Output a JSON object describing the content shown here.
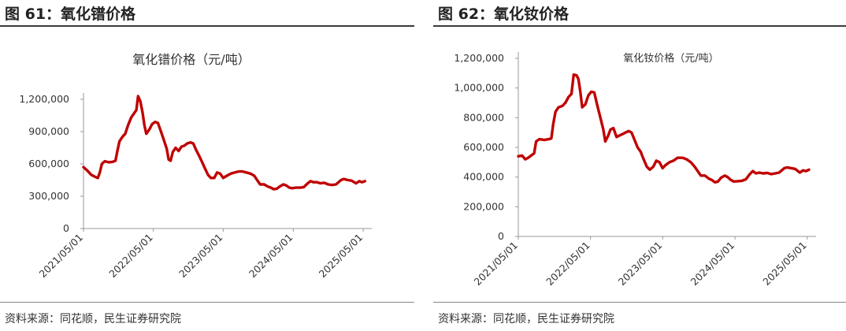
{
  "figures": [
    {
      "heading": "图 61：氧化镨价格",
      "source": "资料来源：同花顺，民生证券研究院",
      "chart_data": {
        "type": "line",
        "title": "氧化镨价格（元/吨）",
        "xlabel": "",
        "ylabel": "",
        "ylim": [
          0,
          1200000
        ],
        "yticks": [
          0,
          300000,
          600000,
          900000,
          1200000
        ],
        "ytick_labels": [
          "0",
          "300,000",
          "600,000",
          "900,000",
          "1,200,000"
        ],
        "xlim": [
          "2021/05/01",
          "2025/06/15"
        ],
        "xtick_labels": [
          "2021/05/01",
          "2022/05/01",
          "2023/05/01",
          "2024/05/01",
          "2025/05/01"
        ],
        "line_color": "#c00000",
        "grid": false,
        "legend": "none",
        "series": [
          {
            "points": [
              [
                "2021/05/01",
                570000
              ],
              [
                "2021/05/20",
                540000
              ],
              [
                "2021/06/10",
                500000
              ],
              [
                "2021/07/01",
                480000
              ],
              [
                "2021/07/15",
                470000
              ],
              [
                "2021/07/25",
                520000
              ],
              [
                "2021/08/05",
                600000
              ],
              [
                "2021/08/20",
                625000
              ],
              [
                "2021/09/10",
                615000
              ],
              [
                "2021/10/01",
                620000
              ],
              [
                "2021/10/15",
                630000
              ],
              [
                "2021/10/25",
                720000
              ],
              [
                "2021/11/05",
                810000
              ],
              [
                "2021/11/20",
                850000
              ],
              [
                "2021/12/05",
                880000
              ],
              [
                "2021/12/20",
                960000
              ],
              [
                "2022/01/05",
                1030000
              ],
              [
                "2022/01/20",
                1070000
              ],
              [
                "2022/02/01",
                1100000
              ],
              [
                "2022/02/10",
                1230000
              ],
              [
                "2022/02/22",
                1180000
              ],
              [
                "2022/03/05",
                1080000
              ],
              [
                "2022/03/15",
                960000
              ],
              [
                "2022/03/25",
                880000
              ],
              [
                "2022/04/10",
                920000
              ],
              [
                "2022/04/25",
                970000
              ],
              [
                "2022/05/10",
                990000
              ],
              [
                "2022/05/25",
                980000
              ],
              [
                "2022/06/10",
                900000
              ],
              [
                "2022/06/25",
                820000
              ],
              [
                "2022/07/10",
                740000
              ],
              [
                "2022/07/20",
                640000
              ],
              [
                "2022/07/30",
                630000
              ],
              [
                "2022/08/10",
                710000
              ],
              [
                "2022/08/25",
                750000
              ],
              [
                "2022/09/10",
                720000
              ],
              [
                "2022/09/25",
                760000
              ],
              [
                "2022/10/10",
                770000
              ],
              [
                "2022/10/25",
                790000
              ],
              [
                "2022/11/10",
                800000
              ],
              [
                "2022/11/25",
                790000
              ],
              [
                "2022/12/10",
                730000
              ],
              [
                "2022/12/25",
                680000
              ],
              [
                "2023/01/10",
                620000
              ],
              [
                "2023/01/25",
                560000
              ],
              [
                "2023/02/10",
                500000
              ],
              [
                "2023/02/25",
                470000
              ],
              [
                "2023/03/15",
                470000
              ],
              [
                "2023/03/30",
                520000
              ],
              [
                "2023/04/15",
                510000
              ],
              [
                "2023/05/01",
                470000
              ],
              [
                "2023/05/20",
                490000
              ],
              [
                "2023/06/10",
                510000
              ],
              [
                "2023/06/30",
                520000
              ],
              [
                "2023/07/20",
                530000
              ],
              [
                "2023/08/10",
                530000
              ],
              [
                "2023/08/30",
                520000
              ],
              [
                "2023/09/20",
                510000
              ],
              [
                "2023/10/10",
                490000
              ],
              [
                "2023/10/25",
                450000
              ],
              [
                "2023/11/10",
                410000
              ],
              [
                "2023/12/01",
                410000
              ],
              [
                "2023/12/20",
                390000
              ],
              [
                "2024/01/05",
                380000
              ],
              [
                "2024/01/20",
                365000
              ],
              [
                "2024/02/05",
                370000
              ],
              [
                "2024/02/20",
                390000
              ],
              [
                "2024/03/10",
                410000
              ],
              [
                "2024/03/25",
                400000
              ],
              [
                "2024/04/10",
                380000
              ],
              [
                "2024/04/25",
                375000
              ],
              [
                "2024/05/15",
                380000
              ],
              [
                "2024/06/05",
                380000
              ],
              [
                "2024/06/25",
                385000
              ],
              [
                "2024/07/15",
                420000
              ],
              [
                "2024/07/30",
                440000
              ],
              [
                "2024/08/15",
                430000
              ],
              [
                "2024/09/01",
                430000
              ],
              [
                "2024/09/20",
                420000
              ],
              [
                "2024/10/10",
                425000
              ],
              [
                "2024/10/30",
                410000
              ],
              [
                "2024/11/20",
                405000
              ],
              [
                "2024/12/10",
                410000
              ],
              [
                "2025/01/05",
                450000
              ],
              [
                "2025/01/20",
                460000
              ],
              [
                "2025/02/10",
                450000
              ],
              [
                "2025/03/01",
                445000
              ],
              [
                "2025/03/15",
                430000
              ],
              [
                "2025/03/25",
                420000
              ],
              [
                "2025/04/10",
                440000
              ],
              [
                "2025/04/25",
                430000
              ],
              [
                "2025/05/10",
                440000
              ]
            ]
          }
        ]
      }
    },
    {
      "heading": "图 62：氧化钕价格",
      "source": "资料来源：同花顺，民生证券研究院",
      "chart_data": {
        "type": "line",
        "title": "氧化钕价格（元/吨）",
        "xlabel": "",
        "ylabel": "",
        "ylim": [
          0,
          1200000
        ],
        "yticks": [
          0,
          200000,
          400000,
          600000,
          800000,
          1000000,
          1200000
        ],
        "ytick_labels": [
          "0",
          "200,000",
          "400,000",
          "600,000",
          "800,000",
          "1,000,000",
          "1,200,000"
        ],
        "xlim": [
          "2021/05/01",
          "2025/06/15"
        ],
        "xtick_labels": [
          "2021/05/01",
          "2022/05/01",
          "2023/05/01",
          "2024/05/01",
          "2025/05/01"
        ],
        "line_color": "#c00000",
        "grid": false,
        "legend": "none",
        "series": [
          {
            "points": [
              [
                "2021/05/01",
                540000
              ],
              [
                "2021/05/20",
                545000
              ],
              [
                "2021/06/05",
                520000
              ],
              [
                "2021/06/20",
                530000
              ],
              [
                "2021/07/05",
                545000
              ],
              [
                "2021/07/20",
                560000
              ],
              [
                "2021/07/30",
                640000
              ],
              [
                "2021/08/15",
                655000
              ],
              [
                "2021/09/10",
                650000
              ],
              [
                "2021/10/01",
                655000
              ],
              [
                "2021/10/15",
                660000
              ],
              [
                "2021/10/25",
                760000
              ],
              [
                "2021/11/05",
                840000
              ],
              [
                "2021/11/20",
                870000
              ],
              [
                "2021/12/10",
                880000
              ],
              [
                "2021/12/25",
                900000
              ],
              [
                "2022/01/10",
                940000
              ],
              [
                "2022/01/25",
                960000
              ],
              [
                "2022/02/05",
                1090000
              ],
              [
                "2022/02/20",
                1085000
              ],
              [
                "2022/03/01",
                1060000
              ],
              [
                "2022/03/10",
                980000
              ],
              [
                "2022/03/20",
                870000
              ],
              [
                "2022/04/05",
                890000
              ],
              [
                "2022/04/20",
                950000
              ],
              [
                "2022/05/05",
                975000
              ],
              [
                "2022/05/20",
                970000
              ],
              [
                "2022/06/05",
                880000
              ],
              [
                "2022/06/20",
                800000
              ],
              [
                "2022/07/05",
                720000
              ],
              [
                "2022/07/15",
                640000
              ],
              [
                "2022/07/30",
                680000
              ],
              [
                "2022/08/10",
                720000
              ],
              [
                "2022/08/25",
                730000
              ],
              [
                "2022/09/10",
                670000
              ],
              [
                "2022/09/25",
                680000
              ],
              [
                "2022/10/10",
                690000
              ],
              [
                "2022/10/25",
                700000
              ],
              [
                "2022/11/10",
                710000
              ],
              [
                "2022/11/25",
                700000
              ],
              [
                "2022/12/10",
                650000
              ],
              [
                "2022/12/25",
                600000
              ],
              [
                "2023/01/10",
                570000
              ],
              [
                "2023/01/25",
                520000
              ],
              [
                "2023/02/10",
                470000
              ],
              [
                "2023/02/25",
                450000
              ],
              [
                "2023/03/15",
                470000
              ],
              [
                "2023/03/30",
                510000
              ],
              [
                "2023/04/15",
                500000
              ],
              [
                "2023/05/01",
                460000
              ],
              [
                "2023/05/15",
                480000
              ],
              [
                "2023/06/05",
                500000
              ],
              [
                "2023/06/25",
                510000
              ],
              [
                "2023/07/15",
                530000
              ],
              [
                "2023/08/10",
                530000
              ],
              [
                "2023/08/30",
                520000
              ],
              [
                "2023/09/20",
                500000
              ],
              [
                "2023/10/10",
                470000
              ],
              [
                "2023/10/25",
                440000
              ],
              [
                "2023/11/10",
                410000
              ],
              [
                "2023/12/01",
                410000
              ],
              [
                "2023/12/20",
                390000
              ],
              [
                "2024/01/05",
                380000
              ],
              [
                "2024/01/20",
                365000
              ],
              [
                "2024/02/05",
                370000
              ],
              [
                "2024/02/20",
                395000
              ],
              [
                "2024/03/10",
                410000
              ],
              [
                "2024/03/25",
                400000
              ],
              [
                "2024/04/10",
                380000
              ],
              [
                "2024/04/25",
                370000
              ],
              [
                "2024/05/15",
                372000
              ],
              [
                "2024/06/05",
                375000
              ],
              [
                "2024/06/25",
                385000
              ],
              [
                "2024/07/15",
                420000
              ],
              [
                "2024/07/30",
                440000
              ],
              [
                "2024/08/15",
                425000
              ],
              [
                "2024/09/01",
                430000
              ],
              [
                "2024/09/20",
                425000
              ],
              [
                "2024/10/10",
                428000
              ],
              [
                "2024/10/30",
                420000
              ],
              [
                "2024/11/20",
                425000
              ],
              [
                "2024/12/10",
                430000
              ],
              [
                "2025/01/05",
                460000
              ],
              [
                "2025/01/20",
                465000
              ],
              [
                "2025/02/10",
                460000
              ],
              [
                "2025/03/01",
                455000
              ],
              [
                "2025/03/15",
                440000
              ],
              [
                "2025/03/25",
                430000
              ],
              [
                "2025/04/10",
                445000
              ],
              [
                "2025/04/25",
                440000
              ],
              [
                "2025/05/10",
                450000
              ]
            ]
          }
        ]
      }
    }
  ]
}
